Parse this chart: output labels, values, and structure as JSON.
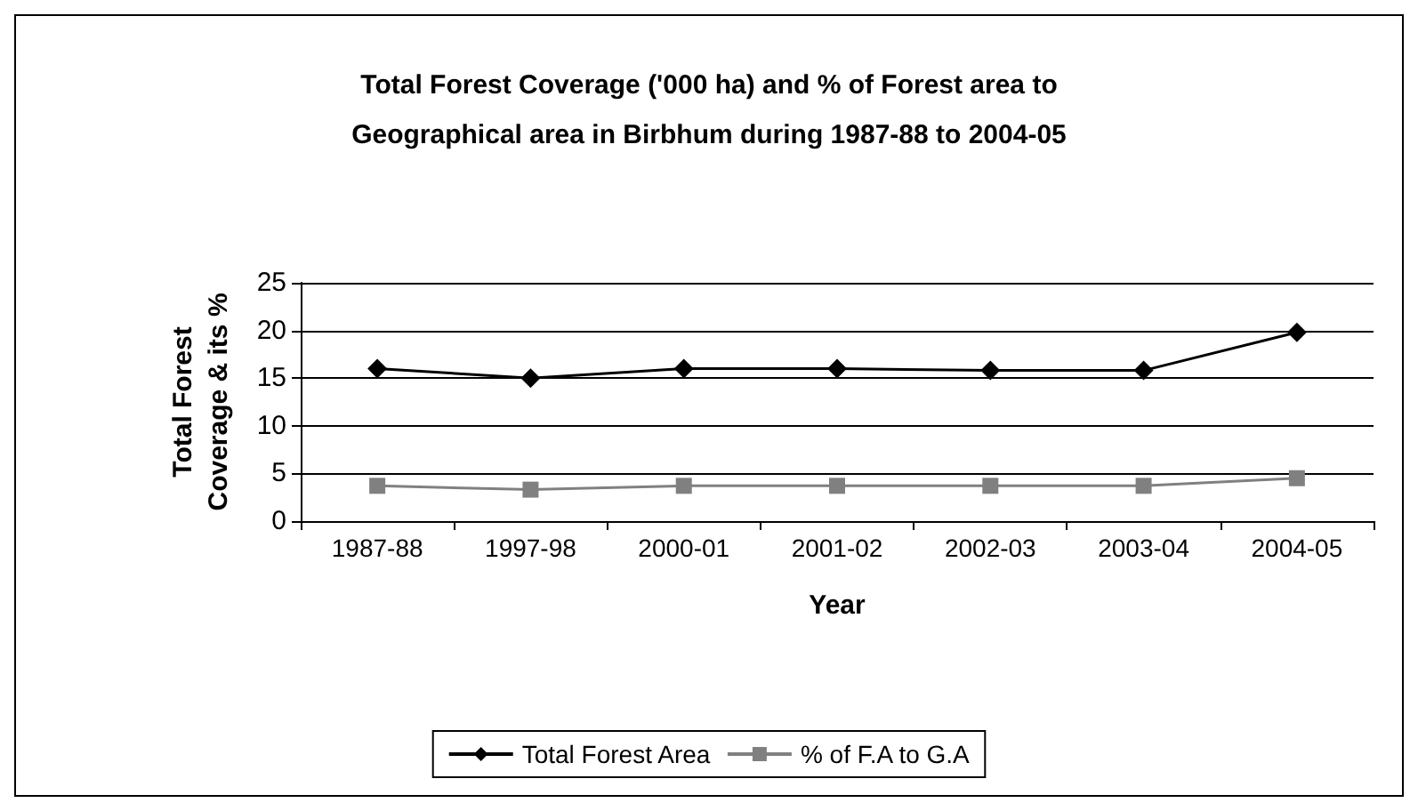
{
  "chart_data": {
    "type": "line",
    "title": "Total Forest Coverage ('000 ha) and % of Forest area to\nGeographical area in Birbhum during 1987-88 to 2004-05",
    "xlabel": "Year",
    "ylabel": "Total Forest\nCoverage & its %",
    "categories": [
      "1987-88",
      "1997-98",
      "2000-01",
      "2001-02",
      "2002-03",
      "2003-04",
      "2004-05"
    ],
    "series": [
      {
        "name": "Total Forest Area",
        "color": "#000000",
        "marker": "diamond",
        "values": [
          16,
          15,
          16,
          16,
          15.8,
          15.8,
          19.8
        ]
      },
      {
        "name": "% of F.A to G.A",
        "color": "#808080",
        "marker": "square",
        "values": [
          3.7,
          3.3,
          3.7,
          3.7,
          3.7,
          3.7,
          4.5
        ]
      }
    ],
    "ylim": [
      0,
      25
    ],
    "yticks": [
      0,
      5,
      10,
      15,
      20,
      25
    ],
    "grid": "y",
    "legend": "bottom"
  }
}
